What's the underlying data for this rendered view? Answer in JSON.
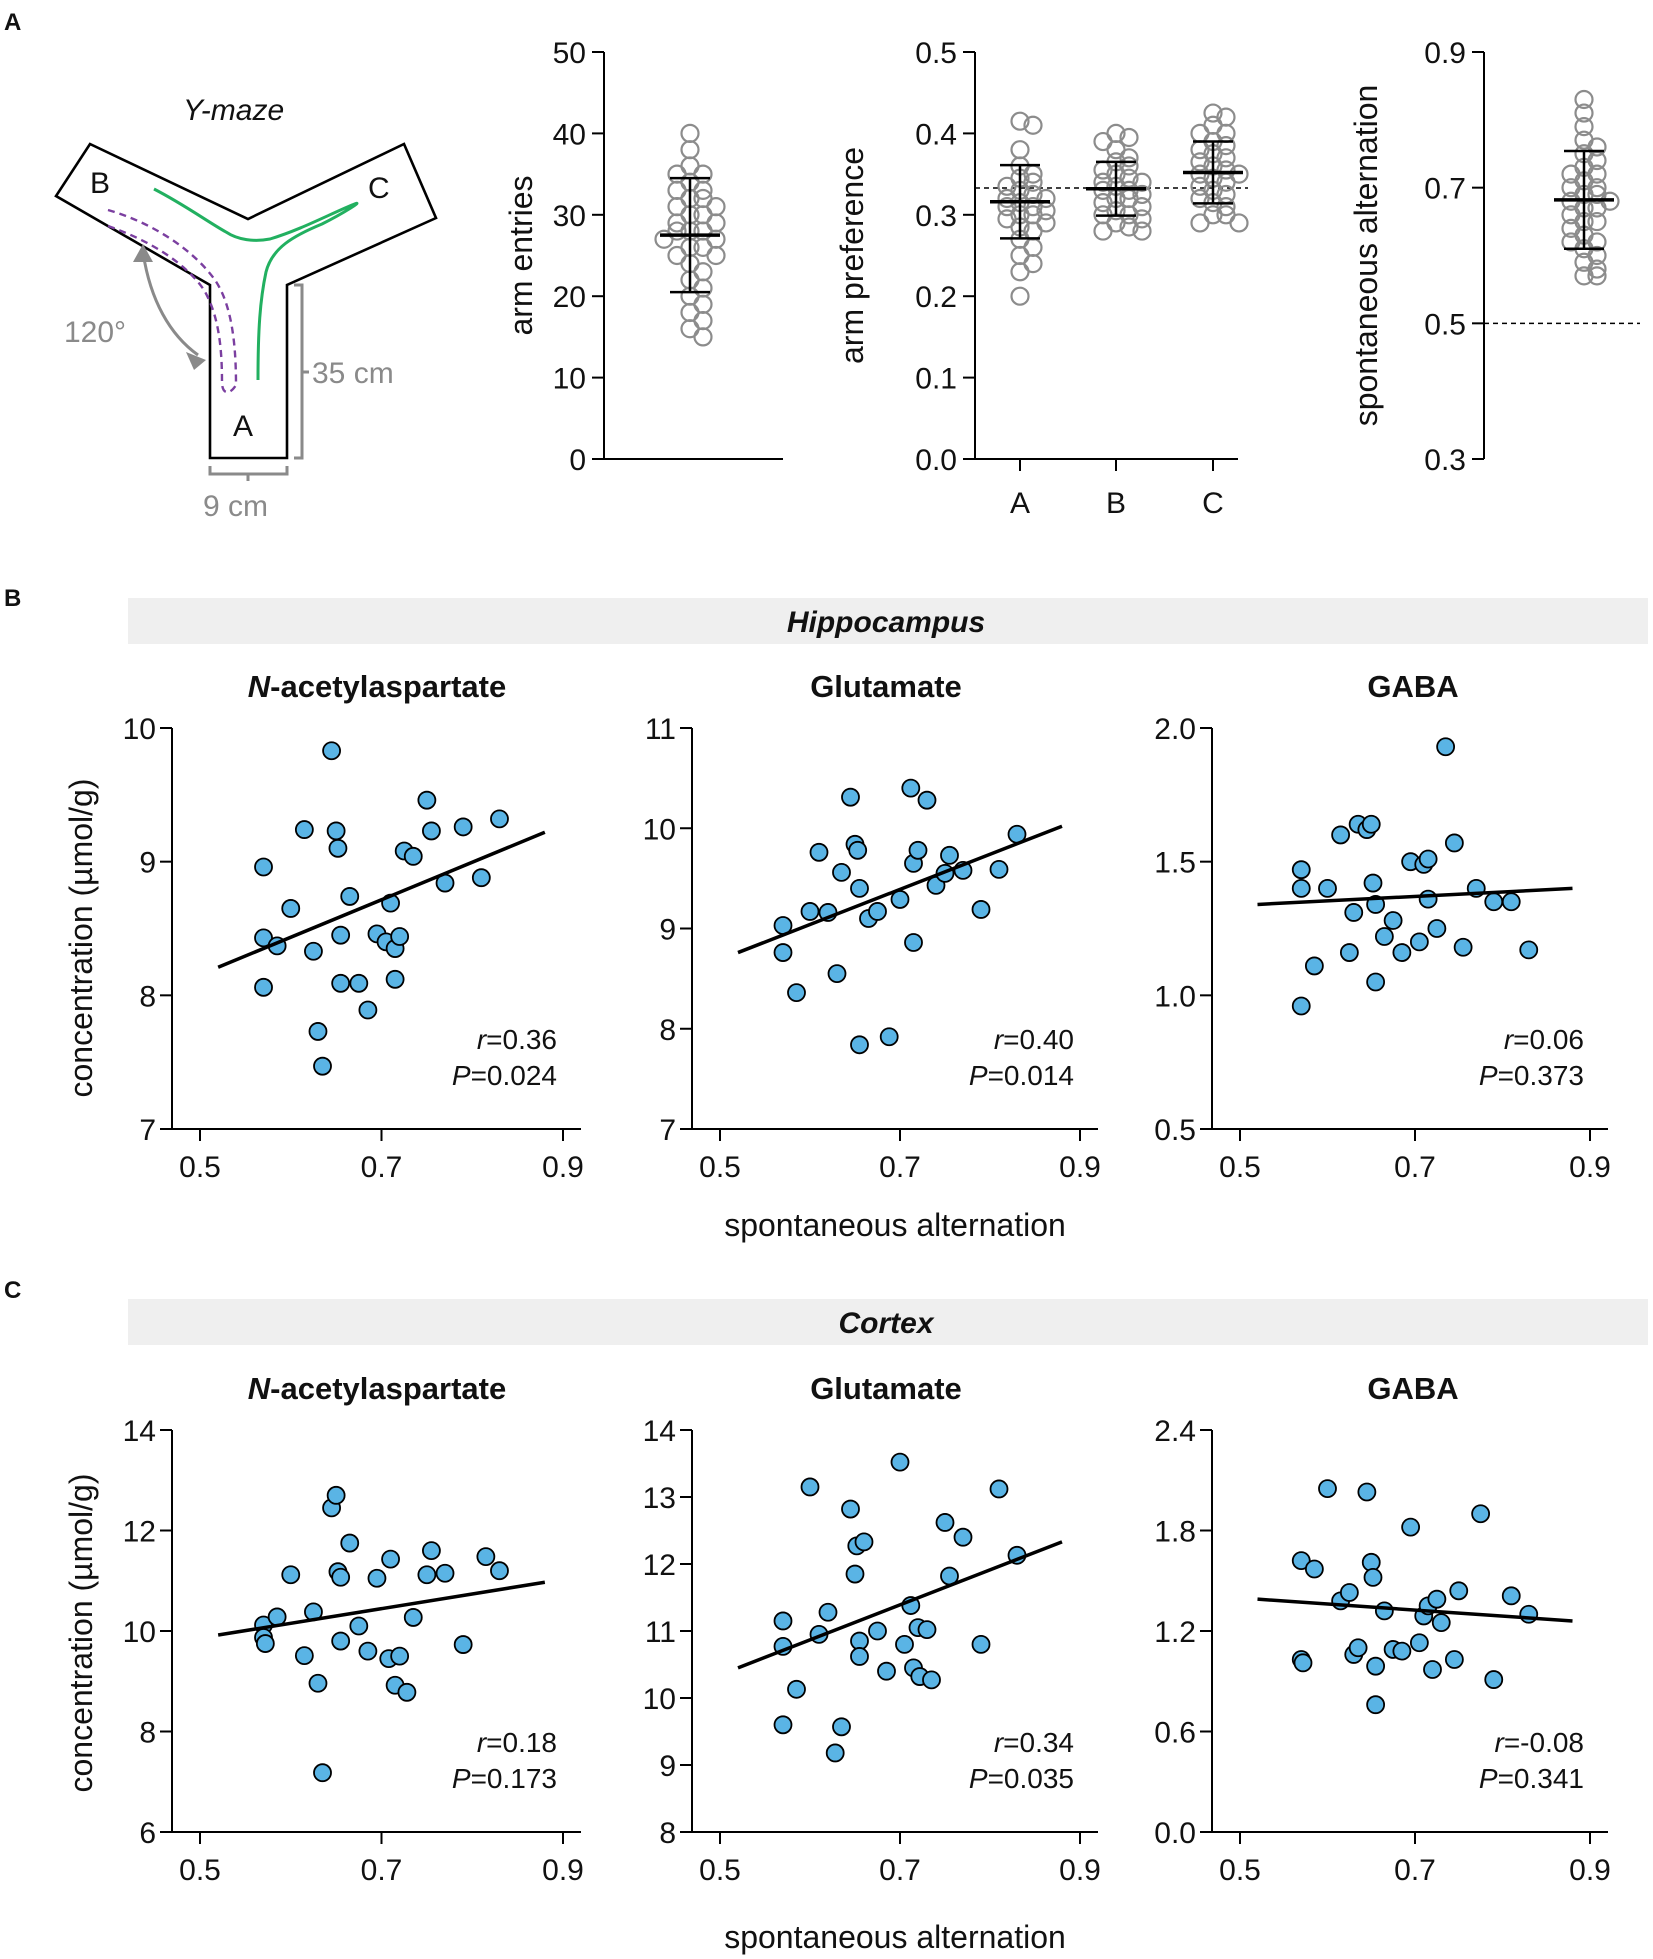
{
  "panels": {
    "a": "A",
    "b": "B",
    "c": "C"
  },
  "maze": {
    "title": "Y-maze",
    "arm_a": "A",
    "arm_b": "B",
    "arm_c": "C",
    "angle": "120°",
    "length": "35 cm",
    "width": "9 cm",
    "colors": {
      "path_green": "#22b060",
      "path_purple": "#7b3fa0",
      "dim_gray": "#8a8a8a"
    }
  },
  "strips": {
    "point_color": "#8c8c8c",
    "entries": {
      "ylabel": "arm entries",
      "ylim": [
        0,
        50
      ],
      "yticks": [
        "0",
        "10",
        "20",
        "30",
        "40",
        "50"
      ],
      "mean": 27.5,
      "sd": 7,
      "values": [
        40,
        38,
        36,
        35,
        35,
        34,
        33,
        33,
        32,
        32,
        31,
        31,
        30,
        30,
        29,
        29,
        28,
        28,
        28,
        27,
        27,
        26,
        26,
        25,
        25,
        24,
        23,
        22,
        21,
        20,
        19,
        18,
        17,
        16,
        15
      ]
    },
    "preference": {
      "ylabel": "arm preference",
      "ylim": [
        0,
        0.5
      ],
      "yticks": [
        "0.0",
        "0.1",
        "0.2",
        "0.3",
        "0.4",
        "0.5"
      ],
      "categories": [
        "A",
        "B",
        "C"
      ],
      "reference_line": 0.333,
      "groups": [
        {
          "name": "A",
          "mean": 0.316,
          "sd": 0.045,
          "values": [
            0.415,
            0.41,
            0.38,
            0.36,
            0.35,
            0.345,
            0.34,
            0.335,
            0.33,
            0.325,
            0.32,
            0.32,
            0.315,
            0.31,
            0.31,
            0.305,
            0.3,
            0.3,
            0.295,
            0.29,
            0.285,
            0.28,
            0.27,
            0.26,
            0.25,
            0.24,
            0.23,
            0.2
          ]
        },
        {
          "name": "B",
          "mean": 0.332,
          "sd": 0.033,
          "values": [
            0.4,
            0.395,
            0.39,
            0.38,
            0.37,
            0.365,
            0.36,
            0.355,
            0.35,
            0.345,
            0.34,
            0.34,
            0.335,
            0.33,
            0.33,
            0.325,
            0.32,
            0.32,
            0.315,
            0.31,
            0.305,
            0.3,
            0.3,
            0.295,
            0.29,
            0.285,
            0.28,
            0.28
          ]
        },
        {
          "name": "C",
          "mean": 0.352,
          "sd": 0.038,
          "values": [
            0.425,
            0.42,
            0.41,
            0.4,
            0.4,
            0.39,
            0.385,
            0.38,
            0.375,
            0.37,
            0.365,
            0.36,
            0.355,
            0.35,
            0.35,
            0.345,
            0.34,
            0.335,
            0.33,
            0.325,
            0.32,
            0.315,
            0.31,
            0.3,
            0.3,
            0.29,
            0.29
          ]
        }
      ]
    },
    "alternation": {
      "ylabel": "spontaneous alternation",
      "ylim": [
        0.3,
        0.9
      ],
      "yticks": [
        "0.3",
        "0.5",
        "0.7",
        "0.9"
      ],
      "reference_line": 0.5,
      "mean": 0.682,
      "sd": 0.072,
      "values": [
        0.83,
        0.81,
        0.79,
        0.77,
        0.76,
        0.75,
        0.74,
        0.73,
        0.72,
        0.72,
        0.71,
        0.7,
        0.7,
        0.69,
        0.69,
        0.68,
        0.68,
        0.67,
        0.67,
        0.66,
        0.65,
        0.65,
        0.64,
        0.63,
        0.62,
        0.62,
        0.61,
        0.6,
        0.59,
        0.58,
        0.57,
        0.57
      ]
    }
  },
  "sections": [
    {
      "region": "Hippocampus"
    },
    {
      "region": "Cortex"
    }
  ],
  "xlabel": "spontaneous alternation",
  "ylabel": "concentration (µmol/g)",
  "scatter_color": "#5ab4e5",
  "metabolites": {
    "naa_prefix": "N",
    "naa_rest": "-acetylaspartate",
    "glu": "Glutamate",
    "gaba": "GABA"
  },
  "chart_data": [
    {
      "type": "scatter",
      "section": "Hippocampus",
      "title": "N-acetylaspartate",
      "xlabel": "spontaneous alternation",
      "ylabel": "concentration (µmol/g)",
      "xlim": [
        0.5,
        0.9
      ],
      "ylim": [
        7,
        10
      ],
      "xticks": [
        "0.5",
        "0.7",
        "0.9"
      ],
      "yticks": [
        "7",
        "8",
        "9",
        "10"
      ],
      "r_label": "r",
      "r_value": "=0.36",
      "p_label": "P",
      "p_value": "=0.024",
      "fit": [
        [
          0.52,
          8.21
        ],
        [
          0.88,
          9.22
        ]
      ],
      "points": [
        [
          0.57,
          8.96
        ],
        [
          0.57,
          8.43
        ],
        [
          0.57,
          8.06
        ],
        [
          0.585,
          8.37
        ],
        [
          0.6,
          8.65
        ],
        [
          0.615,
          9.24
        ],
        [
          0.625,
          8.33
        ],
        [
          0.63,
          7.73
        ],
        [
          0.635,
          7.47
        ],
        [
          0.645,
          9.83
        ],
        [
          0.65,
          9.23
        ],
        [
          0.652,
          9.1
        ],
        [
          0.655,
          8.45
        ],
        [
          0.655,
          8.09
        ],
        [
          0.665,
          8.74
        ],
        [
          0.675,
          8.09
        ],
        [
          0.685,
          7.89
        ],
        [
          0.695,
          8.46
        ],
        [
          0.705,
          8.4
        ],
        [
          0.71,
          8.69
        ],
        [
          0.715,
          8.12
        ],
        [
          0.715,
          8.35
        ],
        [
          0.72,
          8.44
        ],
        [
          0.725,
          9.08
        ],
        [
          0.735,
          9.04
        ],
        [
          0.75,
          9.46
        ],
        [
          0.755,
          9.23
        ],
        [
          0.77,
          8.84
        ],
        [
          0.79,
          9.26
        ],
        [
          0.81,
          8.88
        ],
        [
          0.83,
          9.32
        ]
      ]
    },
    {
      "type": "scatter",
      "section": "Hippocampus",
      "title": "Glutamate",
      "xlabel": "spontaneous alternation",
      "ylabel": "",
      "xlim": [
        0.5,
        0.9
      ],
      "ylim": [
        7,
        11
      ],
      "xticks": [
        "0.5",
        "0.7",
        "0.9"
      ],
      "yticks": [
        "7",
        "8",
        "9",
        "10",
        "11"
      ],
      "r_label": "r",
      "r_value": "=0.40",
      "p_label": "P",
      "p_value": "=0.014",
      "fit": [
        [
          0.52,
          8.76
        ],
        [
          0.88,
          10.02
        ]
      ],
      "points": [
        [
          0.57,
          9.03
        ],
        [
          0.57,
          8.76
        ],
        [
          0.585,
          8.36
        ],
        [
          0.6,
          9.17
        ],
        [
          0.61,
          9.76
        ],
        [
          0.62,
          9.16
        ],
        [
          0.63,
          8.55
        ],
        [
          0.635,
          9.56
        ],
        [
          0.645,
          10.31
        ],
        [
          0.65,
          9.84
        ],
        [
          0.653,
          9.78
        ],
        [
          0.655,
          9.4
        ],
        [
          0.655,
          7.84
        ],
        [
          0.665,
          9.1
        ],
        [
          0.675,
          9.17
        ],
        [
          0.688,
          7.92
        ],
        [
          0.7,
          9.29
        ],
        [
          0.712,
          10.4
        ],
        [
          0.715,
          9.65
        ],
        [
          0.715,
          8.86
        ],
        [
          0.72,
          9.78
        ],
        [
          0.73,
          10.28
        ],
        [
          0.74,
          9.43
        ],
        [
          0.75,
          9.55
        ],
        [
          0.755,
          9.73
        ],
        [
          0.77,
          9.58
        ],
        [
          0.79,
          9.19
        ],
        [
          0.81,
          9.59
        ],
        [
          0.83,
          9.94
        ]
      ]
    },
    {
      "type": "scatter",
      "section": "Hippocampus",
      "title": "GABA",
      "xlabel": "spontaneous alternation",
      "ylabel": "",
      "xlim": [
        0.5,
        0.9
      ],
      "ylim": [
        0.5,
        2.0
      ],
      "xticks": [
        "0.5",
        "0.7",
        "0.9"
      ],
      "yticks": [
        "0.5",
        "1.0",
        "1.5",
        "2.0"
      ],
      "r_label": "r",
      "r_value": "=0.06",
      "p_label": "P",
      "p_value": "=0.373",
      "fit": [
        [
          0.52,
          1.34
        ],
        [
          0.88,
          1.4
        ]
      ],
      "points": [
        [
          0.57,
          1.47
        ],
        [
          0.57,
          1.4
        ],
        [
          0.57,
          0.96
        ],
        [
          0.585,
          1.11
        ],
        [
          0.6,
          1.4
        ],
        [
          0.615,
          1.6
        ],
        [
          0.625,
          1.16
        ],
        [
          0.63,
          1.31
        ],
        [
          0.635,
          1.64
        ],
        [
          0.645,
          1.62
        ],
        [
          0.65,
          1.64
        ],
        [
          0.652,
          1.42
        ],
        [
          0.655,
          1.34
        ],
        [
          0.655,
          1.05
        ],
        [
          0.665,
          1.22
        ],
        [
          0.675,
          1.28
        ],
        [
          0.685,
          1.16
        ],
        [
          0.695,
          1.5
        ],
        [
          0.705,
          1.2
        ],
        [
          0.71,
          1.49
        ],
        [
          0.715,
          1.51
        ],
        [
          0.715,
          1.36
        ],
        [
          0.725,
          1.25
        ],
        [
          0.735,
          1.93
        ],
        [
          0.745,
          1.57
        ],
        [
          0.755,
          1.18
        ],
        [
          0.77,
          1.4
        ],
        [
          0.79,
          1.35
        ],
        [
          0.81,
          1.35
        ],
        [
          0.83,
          1.17
        ]
      ]
    },
    {
      "type": "scatter",
      "section": "Cortex",
      "title": "N-acetylaspartate",
      "xlabel": "spontaneous alternation",
      "ylabel": "concentration (µmol/g)",
      "xlim": [
        0.5,
        0.9
      ],
      "ylim": [
        6,
        14
      ],
      "xticks": [
        "0.5",
        "0.7",
        "0.9"
      ],
      "yticks": [
        "6",
        "8",
        "10",
        "12",
        "14"
      ],
      "r_label": "r",
      "r_value": "=0.18",
      "p_label": "P",
      "p_value": "=0.173",
      "fit": [
        [
          0.52,
          9.92
        ],
        [
          0.88,
          10.97
        ]
      ],
      "points": [
        [
          0.57,
          10.12
        ],
        [
          0.57,
          9.87
        ],
        [
          0.572,
          9.75
        ],
        [
          0.585,
          10.28
        ],
        [
          0.6,
          11.12
        ],
        [
          0.615,
          9.51
        ],
        [
          0.625,
          10.38
        ],
        [
          0.63,
          8.96
        ],
        [
          0.635,
          7.18
        ],
        [
          0.645,
          12.45
        ],
        [
          0.65,
          12.7
        ],
        [
          0.652,
          11.18
        ],
        [
          0.655,
          11.07
        ],
        [
          0.655,
          9.8
        ],
        [
          0.665,
          11.75
        ],
        [
          0.675,
          10.1
        ],
        [
          0.685,
          9.6
        ],
        [
          0.695,
          11.05
        ],
        [
          0.708,
          9.45
        ],
        [
          0.71,
          11.43
        ],
        [
          0.715,
          8.92
        ],
        [
          0.72,
          9.5
        ],
        [
          0.728,
          8.78
        ],
        [
          0.735,
          10.27
        ],
        [
          0.75,
          11.12
        ],
        [
          0.755,
          11.6
        ],
        [
          0.77,
          11.15
        ],
        [
          0.79,
          9.73
        ],
        [
          0.815,
          11.48
        ],
        [
          0.83,
          11.2
        ]
      ]
    },
    {
      "type": "scatter",
      "section": "Cortex",
      "title": "Glutamate",
      "xlabel": "spontaneous alternation",
      "ylabel": "",
      "xlim": [
        0.5,
        0.9
      ],
      "ylim": [
        8,
        14
      ],
      "xticks": [
        "0.5",
        "0.7",
        "0.9"
      ],
      "yticks": [
        "8",
        "9",
        "10",
        "11",
        "12",
        "13",
        "14"
      ],
      "r_label": "r",
      "r_value": "=0.34",
      "p_label": "P",
      "p_value": "=0.035",
      "fit": [
        [
          0.52,
          10.45
        ],
        [
          0.88,
          12.33
        ]
      ],
      "points": [
        [
          0.57,
          11.15
        ],
        [
          0.57,
          10.77
        ],
        [
          0.57,
          9.6
        ],
        [
          0.585,
          10.13
        ],
        [
          0.6,
          13.15
        ],
        [
          0.61,
          10.95
        ],
        [
          0.62,
          11.28
        ],
        [
          0.628,
          9.18
        ],
        [
          0.635,
          9.57
        ],
        [
          0.645,
          12.82
        ],
        [
          0.65,
          11.85
        ],
        [
          0.652,
          12.27
        ],
        [
          0.655,
          10.85
        ],
        [
          0.655,
          10.62
        ],
        [
          0.66,
          12.33
        ],
        [
          0.675,
          11.0
        ],
        [
          0.685,
          10.4
        ],
        [
          0.7,
          13.52
        ],
        [
          0.705,
          10.8
        ],
        [
          0.712,
          11.38
        ],
        [
          0.715,
          10.45
        ],
        [
          0.72,
          11.05
        ],
        [
          0.722,
          10.32
        ],
        [
          0.73,
          11.02
        ],
        [
          0.735,
          10.27
        ],
        [
          0.75,
          12.62
        ],
        [
          0.755,
          11.82
        ],
        [
          0.77,
          12.4
        ],
        [
          0.79,
          10.8
        ],
        [
          0.81,
          13.12
        ],
        [
          0.83,
          12.13
        ]
      ]
    },
    {
      "type": "scatter",
      "section": "Cortex",
      "title": "GABA",
      "xlabel": "spontaneous alternation",
      "ylabel": "",
      "xlim": [
        0.5,
        0.9
      ],
      "ylim": [
        0.0,
        2.4
      ],
      "xticks": [
        "0.5",
        "0.7",
        "0.9"
      ],
      "yticks": [
        "0.0",
        "0.6",
        "1.2",
        "1.8",
        "2.4"
      ],
      "r_label": "r",
      "r_value": "=-0.08",
      "p_label": "P",
      "p_value": "=0.341",
      "fit": [
        [
          0.52,
          1.39
        ],
        [
          0.88,
          1.26
        ]
      ],
      "points": [
        [
          0.57,
          1.62
        ],
        [
          0.57,
          1.03
        ],
        [
          0.572,
          1.01
        ],
        [
          0.585,
          1.57
        ],
        [
          0.6,
          2.05
        ],
        [
          0.615,
          1.38
        ],
        [
          0.625,
          1.43
        ],
        [
          0.63,
          1.06
        ],
        [
          0.635,
          1.1
        ],
        [
          0.645,
          2.03
        ],
        [
          0.65,
          1.61
        ],
        [
          0.652,
          1.52
        ],
        [
          0.655,
          0.99
        ],
        [
          0.655,
          0.76
        ],
        [
          0.665,
          1.32
        ],
        [
          0.675,
          1.09
        ],
        [
          0.685,
          1.08
        ],
        [
          0.695,
          1.82
        ],
        [
          0.705,
          1.13
        ],
        [
          0.71,
          1.29
        ],
        [
          0.715,
          1.35
        ],
        [
          0.72,
          0.97
        ],
        [
          0.725,
          1.39
        ],
        [
          0.73,
          1.25
        ],
        [
          0.745,
          1.03
        ],
        [
          0.75,
          1.44
        ],
        [
          0.775,
          1.9
        ],
        [
          0.79,
          0.91
        ],
        [
          0.81,
          1.41
        ],
        [
          0.83,
          1.3
        ]
      ]
    }
  ]
}
